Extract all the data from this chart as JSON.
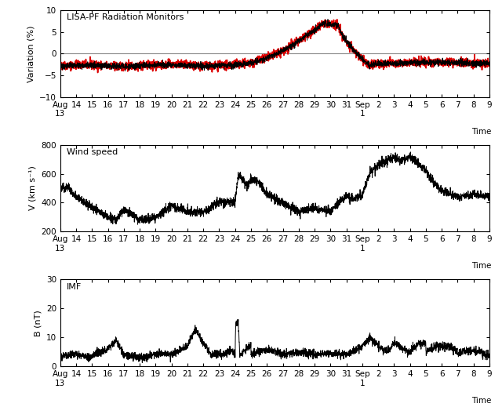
{
  "title1": "LISA-PF Radiation Monitors",
  "title2": "Wind speed",
  "title3": "IMF",
  "ylabel1": "Variation (%)",
  "ylabel2": "V (km s⁻¹)",
  "ylabel3": "B (nT)",
  "xlabel": "Time",
  "ylim1": [
    -10,
    10
  ],
  "ylim2": [
    200,
    800
  ],
  "ylim3": [
    0,
    30
  ],
  "yticks1": [
    -10,
    -5,
    0,
    5,
    10
  ],
  "yticks2": [
    200,
    400,
    600,
    800
  ],
  "yticks3": [
    0,
    10,
    20,
    30
  ],
  "bg_color": "#ffffff",
  "line_color1_red": "#dd0000",
  "line_color1_black": "#000000",
  "line_color2": "#000000",
  "line_color3": "#000000",
  "hline_color": "#888888",
  "tick_labels": [
    "Aug\n13",
    "14",
    "15",
    "16",
    "17",
    "18",
    "19",
    "20",
    "21",
    "22",
    "23",
    "24",
    "25",
    "26",
    "27",
    "28",
    "29",
    "30",
    "31",
    "Sep\n1",
    "2",
    "3",
    "4",
    "5",
    "6",
    "7",
    "8",
    "9"
  ],
  "tick_positions": [
    0,
    1,
    2,
    3,
    4,
    5,
    6,
    7,
    8,
    9,
    10,
    11,
    12,
    13,
    14,
    15,
    16,
    17,
    18,
    19,
    20,
    21,
    22,
    23,
    24,
    25,
    26,
    27
  ]
}
